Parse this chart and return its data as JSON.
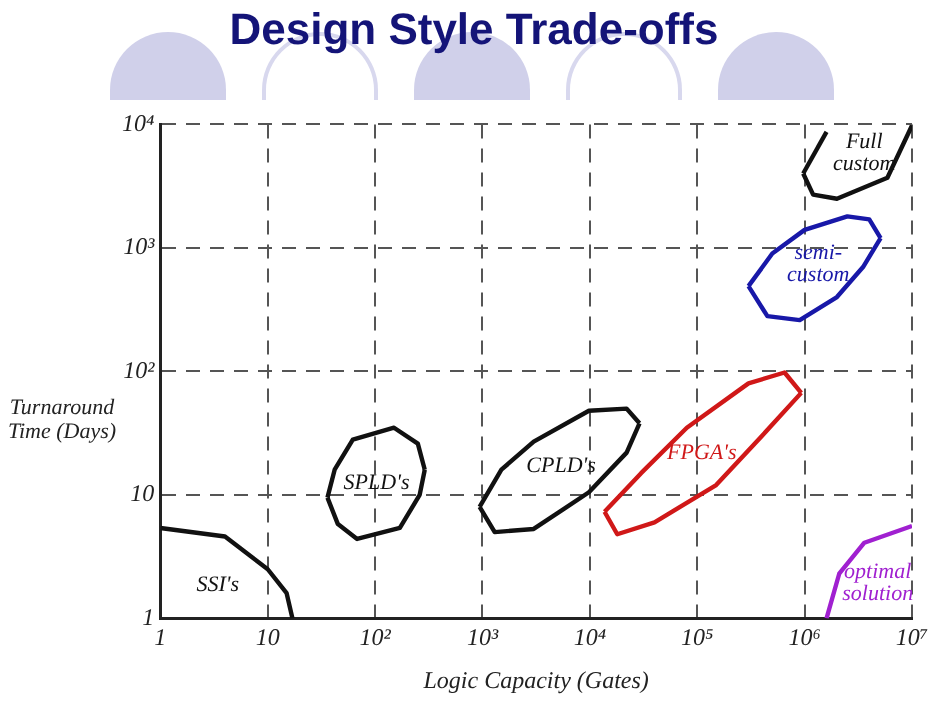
{
  "chart_data": {
    "type": "line",
    "title": "Design Style Trade-offs",
    "xlabel": "Logic Capacity (Gates)",
    "ylabel": "Turnaround Time (Days)",
    "log": "xy",
    "grid": true,
    "line_style": "solid",
    "marker": "none",
    "xlim": [
      1,
      10000000
    ],
    "ylim": [
      1,
      10000
    ],
    "xticks": [
      1,
      10,
      {
        "value": 100,
        "label": "10²"
      },
      {
        "value": 1000,
        "label": "10³"
      },
      {
        "value": 10000,
        "label": "10⁴"
      },
      {
        "value": 100000,
        "label": "10⁵"
      },
      {
        "value": 1000000,
        "label": "10⁶"
      },
      {
        "value": 10000000,
        "label": "10⁷"
      }
    ],
    "yticks": [
      1,
      10,
      {
        "value": 100,
        "label": "10²"
      },
      {
        "value": 1000,
        "label": "10³"
      },
      {
        "value": 10000,
        "label": "10⁴"
      }
    ],
    "series": [
      {
        "name": "SSI's",
        "color": "#111111",
        "x": [
          1,
          4,
          10,
          15,
          17
        ],
        "values": [
          5.4,
          4.6,
          2.5,
          1.6,
          1
        ]
      },
      {
        "name": "SPLD's",
        "color": "#111111",
        "x": [
          36,
          42,
          62,
          150,
          250,
          290
        ],
        "values": [
          9.5,
          16,
          28,
          35,
          26,
          16
        ]
      },
      {
        "color": "#111111",
        "x": [
          36,
          45,
          68,
          170,
          260,
          290
        ],
        "values": [
          9.5,
          5.8,
          4.4,
          5.4,
          10,
          16
        ]
      },
      {
        "name": "CPLD's",
        "color": "#111111",
        "x": [
          940,
          1500,
          3000,
          9800,
          22000,
          29000
        ],
        "values": [
          8,
          16,
          27,
          48,
          50,
          38
        ]
      },
      {
        "color": "#111111",
        "x": [
          940,
          1300,
          3000,
          9800,
          22000,
          29000
        ],
        "values": [
          8,
          5,
          5.3,
          10.5,
          22,
          38
        ]
      },
      {
        "name": "FPGA's",
        "color": "#d01818",
        "x": [
          13700,
          30000,
          80000,
          300000,
          650000,
          930000
        ],
        "values": [
          7.3,
          15,
          35,
          80,
          98,
          67
        ]
      },
      {
        "color": "#d01818",
        "x": [
          13700,
          18000,
          40000,
          150000,
          400000,
          930000
        ],
        "values": [
          7.3,
          4.8,
          6,
          12,
          30,
          67
        ]
      },
      {
        "name": "semi-custom",
        "color": "#1818a8",
        "x": [
          300000,
          500000,
          1000000,
          2500000,
          4000000,
          5100000
        ],
        "values": [
          490,
          900,
          1400,
          1800,
          1700,
          1200
        ]
      },
      {
        "color": "#1818a8",
        "x": [
          300000,
          450000,
          900000,
          2000000,
          3500000,
          5100000
        ],
        "values": [
          490,
          280,
          260,
          400,
          700,
          1200
        ]
      },
      {
        "name": "Full custom",
        "color": "#111111",
        "x": [
          970000,
          1600000
        ],
        "values": [
          4000,
          8700
        ]
      },
      {
        "color": "#111111",
        "x": [
          970000,
          1200000,
          2000000,
          5900000,
          10000000
        ],
        "values": [
          4000,
          2700,
          2500,
          3700,
          9800
        ]
      },
      {
        "name": "optimal solution",
        "color": "#a020d0",
        "x": [
          1600000,
          2100000,
          3600000,
          10000000
        ],
        "values": [
          1,
          2.3,
          4.1,
          5.6
        ]
      }
    ]
  }
}
